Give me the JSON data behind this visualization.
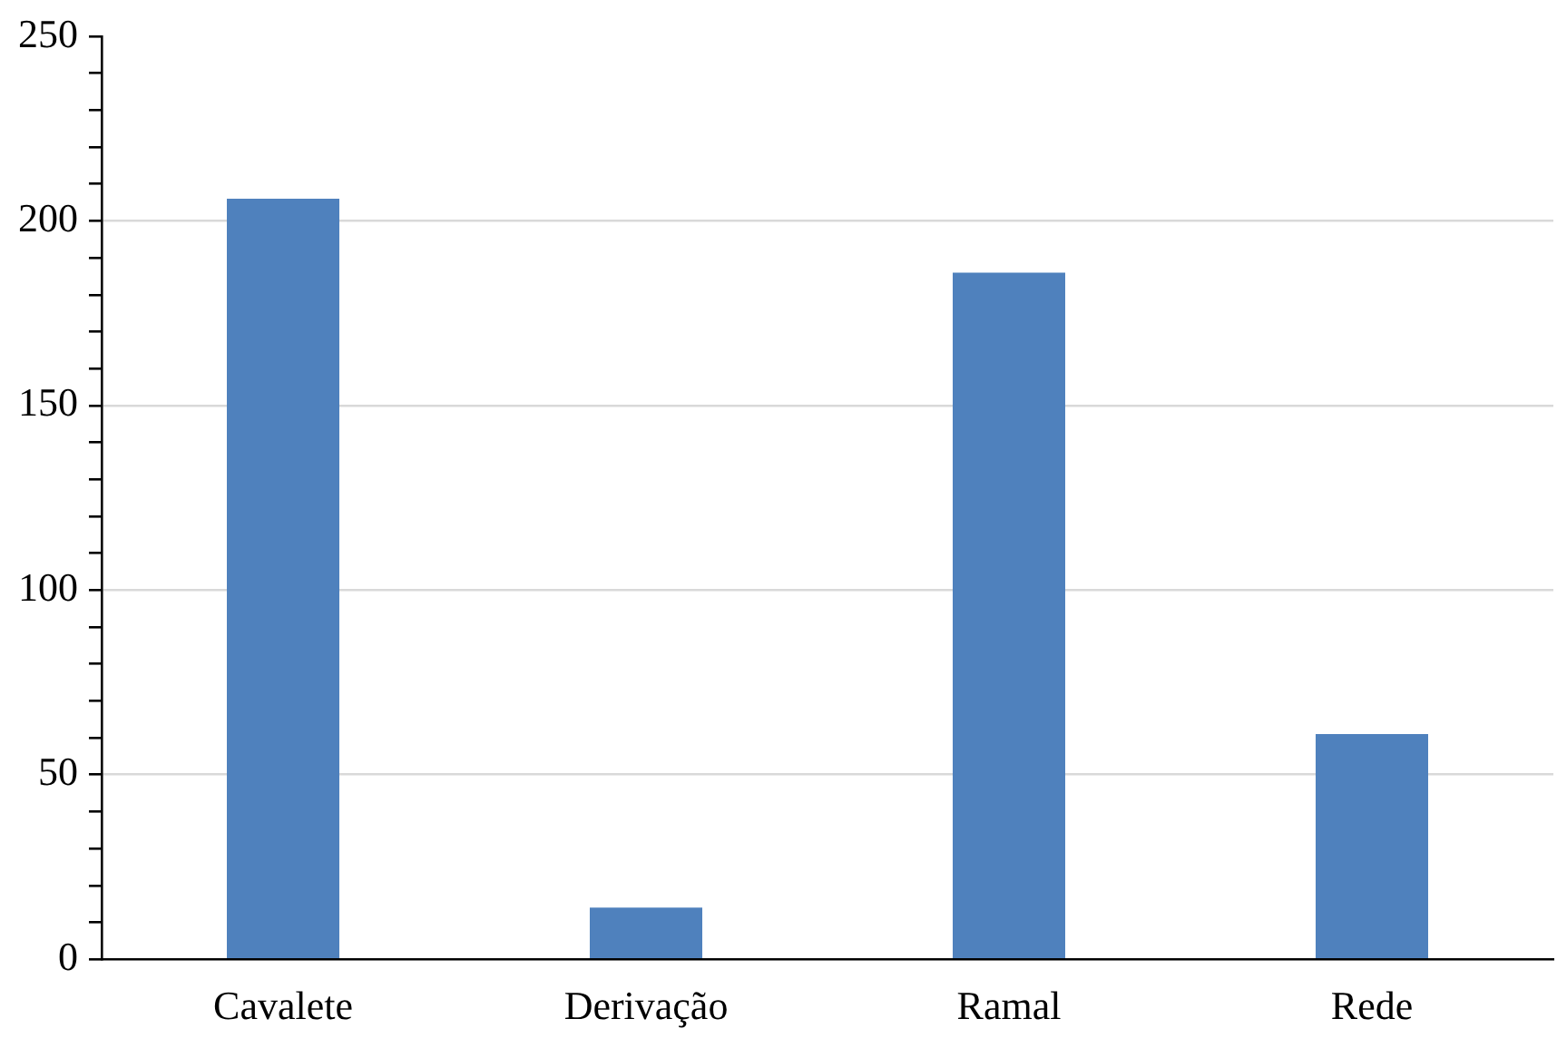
{
  "chart_data": {
    "type": "bar",
    "categories": [
      "Cavalete",
      "Derivação",
      "Ramal",
      "Rede"
    ],
    "values": [
      206,
      14,
      186,
      61
    ],
    "color": "#4f81bd",
    "ylim": [
      0,
      250
    ],
    "yticks": [
      0,
      {
        "value": 10,
        "label": null
      },
      {
        "value": 20,
        "label": null
      },
      {
        "value": 30,
        "label": null
      },
      {
        "value": 40,
        "label": null
      },
      50,
      {
        "value": 60,
        "label": null
      },
      {
        "value": 70,
        "label": null
      },
      {
        "value": 80,
        "label": null
      },
      {
        "value": 90,
        "label": null
      },
      100,
      {
        "value": 110,
        "label": null
      },
      {
        "value": 120,
        "label": null
      },
      {
        "value": 130,
        "label": null
      },
      {
        "value": 140,
        "label": null
      },
      150,
      {
        "value": 160,
        "label": null
      },
      {
        "value": 170,
        "label": null
      },
      {
        "value": 180,
        "label": null
      },
      {
        "value": 190,
        "label": null
      },
      200,
      {
        "value": 210,
        "label": null
      },
      {
        "value": 220,
        "label": null
      },
      {
        "value": 230,
        "label": null
      },
      {
        "value": 240,
        "label": null
      },
      250
    ],
    "grid": "y"
  }
}
